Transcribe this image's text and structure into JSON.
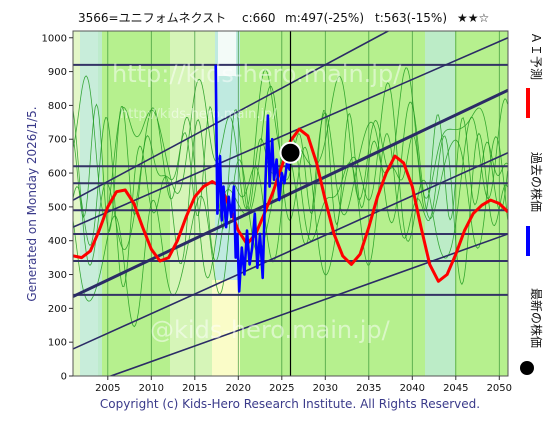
{
  "header": {
    "code_name": "3566=ユニフォムネクスト",
    "current": "c:660",
    "mid": "m:497(-25%)",
    "target": "t:563(-15%)",
    "rating": "★★☆"
  },
  "side_text": "Generated on Monday 2026/1/5.",
  "footer": "Copyright (c) Kids-Hero Research Institute. All Rights Reserved.",
  "watermarks": [
    "http://kids-hero.main.jp/",
    "http://kids-hero.main.jp/",
    "@kids-hero.main.jp/"
  ],
  "legend": [
    {
      "label": "ＡＩ予測",
      "color": "#ff0000"
    },
    {
      "label": "過去の株価",
      "color": "#0000ff"
    },
    {
      "label": "最新の株価",
      "color": "#000000"
    }
  ],
  "colors": {
    "band_green": "#b6f08e",
    "band_light": "#e3f7c8",
    "band_cyan": "#bfeae0",
    "band_yellow": "#fafcc8",
    "grid": "#333366",
    "channel": "#2b2b66",
    "forecast": "#ff0000",
    "past": "#0000ff",
    "thin_green": "#1f9a1f"
  },
  "chart_data": {
    "type": "line",
    "title": "3566=ユニフォムネクスト",
    "xlim": [
      2001,
      2051
    ],
    "ylim": [
      0,
      1020
    ],
    "x_ticks": [
      2005,
      2010,
      2015,
      2020,
      2025,
      2030,
      2035,
      2040,
      2045,
      2050
    ],
    "y_ticks": [
      0,
      100,
      200,
      300,
      400,
      500,
      600,
      700,
      800,
      900,
      1000
    ],
    "horizontal_levels": [
      240,
      340,
      420,
      490,
      570,
      620,
      920
    ],
    "vertical_marker_x": 2026.0,
    "latest_point": {
      "x": 2026.0,
      "y": 660
    },
    "channel_lines": [
      {
        "name": "upper2",
        "x": [
          2001,
          2051
        ],
        "y": [
          520,
          1210
        ]
      },
      {
        "name": "upper1",
        "x": [
          2001,
          2051
        ],
        "y": [
          440,
          1000
        ]
      },
      {
        "name": "center",
        "x": [
          2001,
          2051
        ],
        "y": [
          235,
          845
        ]
      },
      {
        "name": "lower1",
        "x": [
          2001,
          2051
        ],
        "y": [
          80,
          660
        ]
      },
      {
        "name": "lower2",
        "x": [
          2001,
          2051
        ],
        "y": [
          -40,
          420
        ]
      }
    ],
    "series": [
      {
        "name": "ＡＩ予測",
        "x": [
          2001.0,
          2002.0,
          2003.0,
          2004.0,
          2005.0,
          2006.0,
          2007.0,
          2008.0,
          2009.0,
          2010.0,
          2011.0,
          2012.0,
          2013.0,
          2014.0,
          2015.0,
          2016.0,
          2017.0,
          2018.0,
          2019.0,
          2020.0,
          2021.0,
          2022.0,
          2023.0,
          2024.0,
          2025.0,
          2026.0,
          2027.0,
          2028.0,
          2029.0,
          2030.0,
          2031.0,
          2032.0,
          2033.0,
          2034.0,
          2035.0,
          2036.0,
          2037.0,
          2038.0,
          2039.0,
          2040.0,
          2041.0,
          2042.0,
          2043.0,
          2044.0,
          2045.0,
          2046.0,
          2047.0,
          2048.0,
          2049.0,
          2050.0,
          2051.0
        ],
        "y": [
          355,
          350,
          370,
          430,
          500,
          545,
          550,
          510,
          440,
          375,
          340,
          350,
          400,
          470,
          530,
          560,
          575,
          560,
          500,
          430,
          390,
          420,
          480,
          545,
          620,
          695,
          730,
          710,
          630,
          520,
          420,
          355,
          330,
          360,
          440,
          530,
          600,
          650,
          630,
          560,
          440,
          330,
          280,
          300,
          360,
          430,
          480,
          505,
          520,
          510,
          485
        ]
      },
      {
        "name": "過去の株価",
        "x": [
          2017.4,
          2017.6,
          2017.9,
          2018.1,
          2018.3,
          2018.6,
          2018.9,
          2019.2,
          2019.5,
          2019.7,
          2019.9,
          2020.1,
          2020.4,
          2020.7,
          2021.0,
          2021.3,
          2021.6,
          2021.9,
          2022.2,
          2022.5,
          2022.8,
          2023.1,
          2023.4,
          2023.6,
          2023.9,
          2024.1,
          2024.4,
          2024.7,
          2025.0,
          2025.3,
          2025.6,
          2025.9,
          2026.0
        ],
        "y": [
          920,
          480,
          650,
          460,
          560,
          440,
          530,
          470,
          560,
          350,
          420,
          250,
          380,
          300,
          430,
          330,
          380,
          480,
          320,
          420,
          290,
          560,
          770,
          560,
          700,
          580,
          640,
          520,
          600,
          570,
          630,
          610,
          660
        ]
      }
    ]
  }
}
